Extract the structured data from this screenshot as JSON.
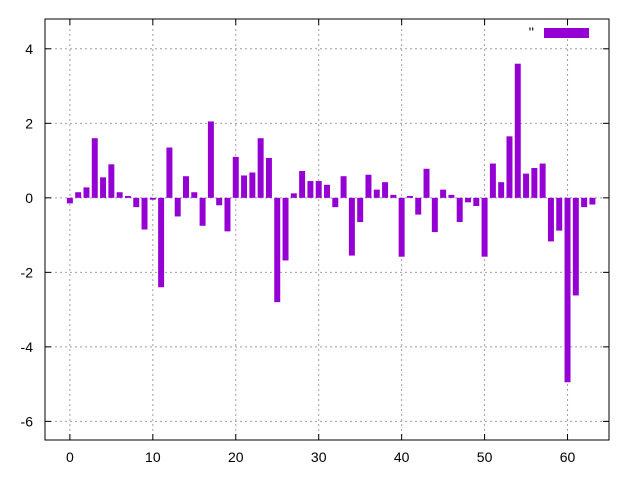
{
  "chart_data": {
    "type": "bar",
    "title": "",
    "xlabel": "",
    "ylabel": "",
    "xlim": [
      -3,
      65
    ],
    "ylim": [
      -6.5,
      4.8
    ],
    "xticks": [
      0,
      10,
      20,
      30,
      40,
      50,
      60
    ],
    "yticks": [
      -6,
      -4,
      -2,
      0,
      2,
      4
    ],
    "xtick_labels": [
      "0",
      "10",
      "20",
      "30",
      "40",
      "50",
      "60"
    ],
    "ytick_labels": [
      "-6",
      "-4",
      "-2",
      "0",
      "2",
      "4"
    ],
    "grid": true,
    "legend_position": "top-right",
    "color": "#9400d3",
    "series": [
      {
        "name": "''",
        "x": [
          0,
          1,
          2,
          3,
          4,
          5,
          6,
          7,
          8,
          9,
          10,
          11,
          12,
          13,
          14,
          15,
          16,
          17,
          18,
          19,
          20,
          21,
          22,
          23,
          24,
          25,
          26,
          27,
          28,
          29,
          30,
          31,
          32,
          33,
          34,
          35,
          36,
          37,
          38,
          39,
          40,
          41,
          42,
          43,
          44,
          45,
          46,
          47,
          48,
          49,
          50,
          51,
          52,
          53,
          54,
          55,
          56,
          57,
          58,
          59,
          60,
          61,
          62,
          63
        ],
        "values": [
          -0.15,
          0.15,
          0.28,
          1.6,
          0.55,
          0.9,
          0.15,
          0.05,
          -0.25,
          -0.85,
          -0.05,
          -2.4,
          1.35,
          -0.5,
          0.58,
          0.15,
          -0.75,
          2.05,
          -0.2,
          -0.9,
          1.1,
          0.6,
          0.68,
          1.6,
          1.07,
          -2.8,
          -1.68,
          0.12,
          0.72,
          0.45,
          0.45,
          0.35,
          -0.25,
          0.58,
          -1.55,
          -0.65,
          0.62,
          0.22,
          0.42,
          0.08,
          -1.58,
          0.05,
          -0.45,
          0.78,
          -0.92,
          0.22,
          0.08,
          -0.65,
          -0.12,
          -0.22,
          -1.58,
          0.92,
          0.42,
          1.65,
          3.6,
          0.65,
          0.8,
          0.92,
          -1.17,
          -0.88,
          -4.95,
          -2.62,
          -0.25,
          -0.18
        ]
      }
    ]
  }
}
